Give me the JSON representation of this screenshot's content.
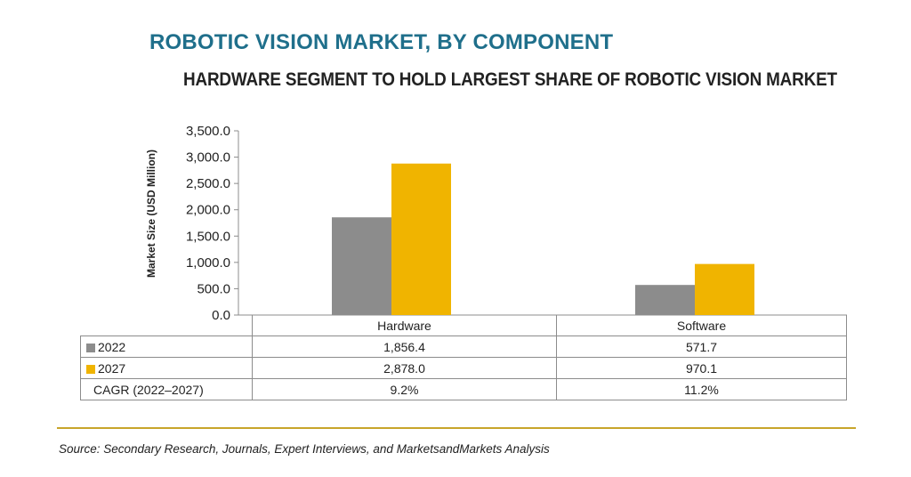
{
  "title": "ROBOTIC VISION MARKET, BY COMPONENT",
  "subtitle": "HARDWARE SEGMENT TO HOLD LARGEST SHARE OF ROBOTIC VISION MARKET",
  "source": "Source: Secondary Research, Journals, Expert Interviews, and MarketsandMarkets Analysis",
  "colors": {
    "2022": "#8c8c8c",
    "2027": "#f0b400",
    "title": "#1f6f8b",
    "divider": "#c8a52a"
  },
  "chart_data": {
    "type": "bar",
    "title": "ROBOTIC VISION MARKET, BY COMPONENT",
    "subtitle": "HARDWARE SEGMENT TO HOLD LARGEST SHARE OF ROBOTIC VISION MARKET",
    "xlabel": "",
    "ylabel": "Market Size (USD Million)",
    "ylim": [
      0,
      3500
    ],
    "yticks": [
      "0.0",
      "500.0",
      "1,000.0",
      "1,500.0",
      "2,000.0",
      "2,500.0",
      "3,000.0",
      "3,500.0"
    ],
    "ytick_values": [
      0,
      500,
      1000,
      1500,
      2000,
      2500,
      3000,
      3500
    ],
    "categories": [
      "Hardware",
      "Software"
    ],
    "series": [
      {
        "name": "2022",
        "values": [
          1856.4,
          571.7
        ],
        "labels": [
          "1,856.4",
          "571.7"
        ]
      },
      {
        "name": "2027",
        "values": [
          2878.0,
          970.1
        ],
        "labels": [
          "2,878.0",
          "970.1"
        ]
      }
    ],
    "cagr": {
      "label": "CAGR (2022–2027)",
      "values": [
        "9.2%",
        "11.2%"
      ]
    },
    "grid": false,
    "legend": "data table below chart"
  }
}
